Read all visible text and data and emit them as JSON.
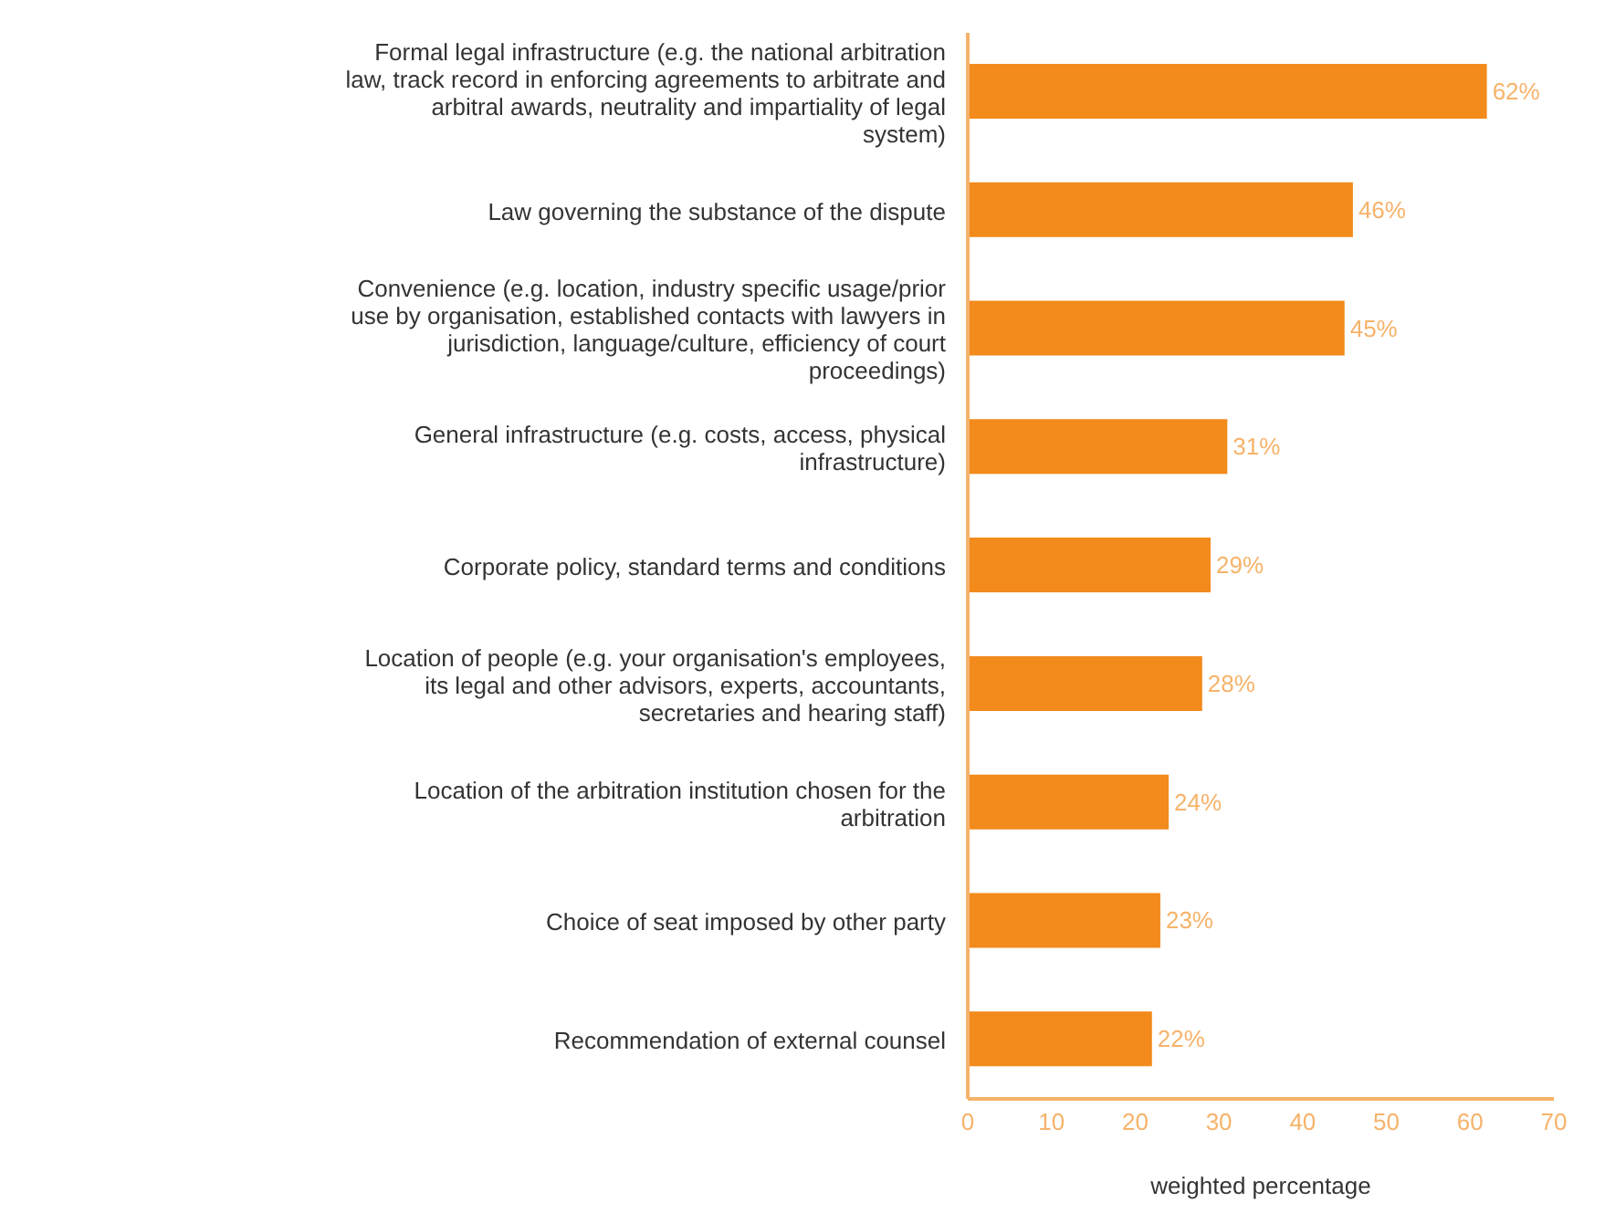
{
  "chart_data": {
    "type": "bar",
    "orientation": "horizontal",
    "xlabel": "weighted percentage",
    "categories": [
      "Formal legal infrastructure (e.g. the national arbitration law, track record in enforcing agreements to arbitrate and arbitral awards, neutrality and impartiality of legal system)",
      "Law governing the substance of the dispute",
      "Convenience (e.g. location, industry specific usage/prior use by organisation, established contacts with lawyers in jurisdiction, language/culture, efficiency of court proceedings)",
      "General infrastructure (e.g. costs, access, physical infrastructure)",
      "Corporate policy, standard terms and conditions",
      "Location of people (e.g. your organisation's employees, its legal and other advisors, experts, accountants, secretaries and hearing staff)",
      "Location of the arbitration institution chosen for the arbitration",
      "Choice of seat imposed by other party",
      "Recommendation of external counsel"
    ],
    "values": [
      62,
      46,
      45,
      31,
      29,
      28,
      24,
      23,
      22
    ],
    "value_labels": [
      "62%",
      "46%",
      "45%",
      "31%",
      "29%",
      "28%",
      "24%",
      "23%",
      "22%"
    ],
    "color": "#f28a1c",
    "xlim": [
      0,
      70
    ],
    "xticks": [
      0,
      10,
      20,
      30,
      40,
      50,
      60,
      70
    ],
    "grid": false
  }
}
